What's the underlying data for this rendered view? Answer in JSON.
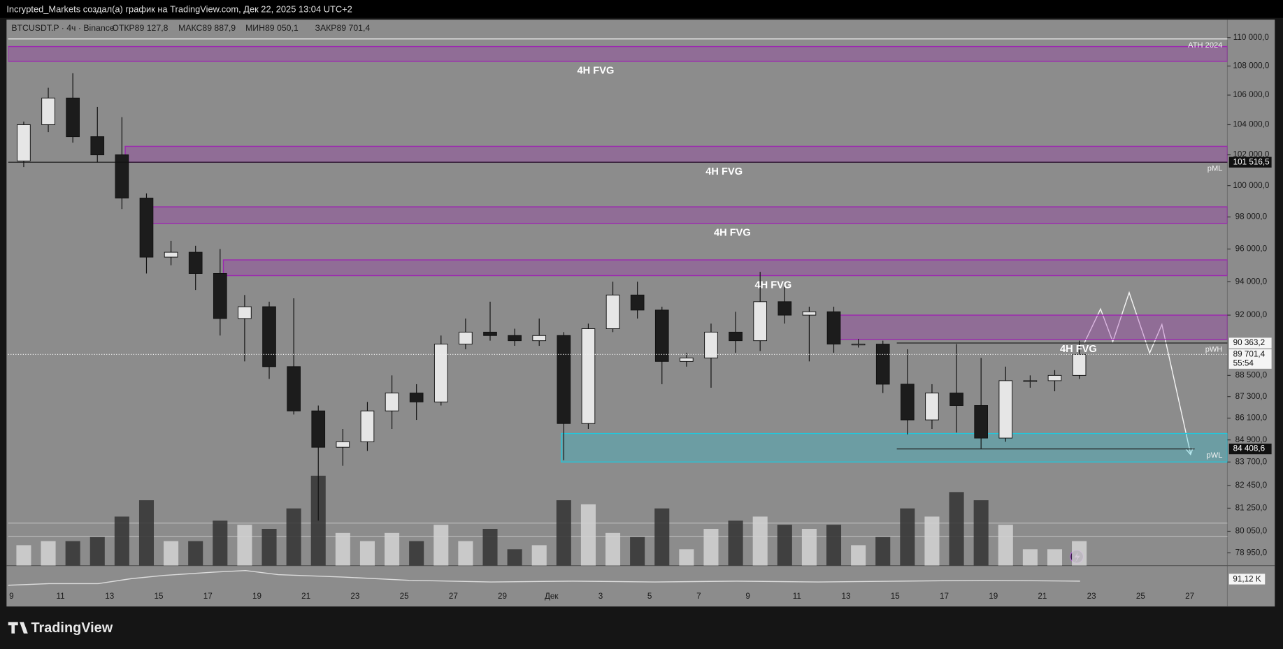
{
  "header": {
    "title": "Incrypted_Markets создал(а) график на TradingView.com, Дек 22, 2025 13:04 UTC+2",
    "symbol": "BTCUSDT.P · 4ч · Binance",
    "ohlc": [
      "ОТКР89 127,8",
      "МАКС89 887,9",
      "МИН89 050,1",
      "ЗАКР89 701,4"
    ]
  },
  "footer": {
    "brand": "TradingView"
  },
  "chart_data": {
    "type": "candlestick",
    "log_scale": true,
    "categories": [
      "9",
      null,
      "11",
      null,
      "13",
      null,
      "15",
      null,
      "17",
      null,
      "19",
      null,
      "21",
      null,
      "23",
      null,
      "25",
      null,
      "27",
      null,
      "29",
      null,
      "Дек",
      null,
      "3",
      null,
      "5",
      null,
      "7",
      null,
      "9",
      null,
      "11",
      null,
      "13",
      null,
      "15",
      null,
      "17",
      null,
      "19",
      null,
      "21",
      null,
      "23",
      null,
      "25",
      null,
      "27"
    ],
    "open": [
      101600,
      104000,
      105800,
      103200,
      102000,
      99200,
      95500,
      95800,
      94500,
      91800,
      92500,
      89000,
      86500,
      84500,
      84800,
      86500,
      87500,
      87000,
      90300,
      91000,
      90800,
      90500,
      90800,
      85800,
      91200,
      93200,
      92300,
      89300,
      89500,
      91000,
      90500,
      92800,
      92000,
      92200,
      90300,
      90300,
      88000,
      86000,
      87500,
      86800,
      85000,
      88200,
      88200,
      88500,
      null,
      null,
      null,
      null,
      null
    ],
    "high": [
      104200,
      106500,
      107500,
      105200,
      104500,
      99500,
      96500,
      96200,
      96000,
      93200,
      92800,
      93000,
      86800,
      85500,
      87000,
      88500,
      88000,
      90800,
      91800,
      92800,
      91200,
      91800,
      91000,
      91500,
      94000,
      94000,
      92500,
      89800,
      91500,
      92200,
      94600,
      93800,
      92500,
      92500,
      90600,
      90500,
      90000,
      88000,
      90300,
      89500,
      89000,
      88500,
      88800,
      90500,
      null,
      null,
      null,
      null,
      null
    ],
    "low": [
      101200,
      103500,
      102800,
      101500,
      98500,
      94500,
      95000,
      93500,
      90800,
      89300,
      88300,
      86300,
      80600,
      83500,
      84300,
      85500,
      86000,
      86800,
      90000,
      90500,
      90200,
      90200,
      83800,
      85500,
      91000,
      91800,
      88000,
      89000,
      87800,
      89800,
      89900,
      91500,
      89300,
      89800,
      90100,
      87500,
      85200,
      85500,
      85300,
      84400,
      84800,
      87800,
      87600,
      88300,
      null,
      null,
      null,
      null,
      null
    ],
    "close": [
      104000,
      105800,
      103200,
      102000,
      99200,
      95500,
      95800,
      94500,
      91800,
      92500,
      89000,
      86500,
      84500,
      84800,
      86500,
      87500,
      87000,
      90300,
      91000,
      90800,
      90500,
      90800,
      85800,
      91200,
      93200,
      92300,
      89300,
      89500,
      91000,
      90500,
      92800,
      92000,
      92200,
      90300,
      90300,
      88000,
      86000,
      87500,
      86800,
      85000,
      88200,
      88200,
      88500,
      89701.4,
      null,
      null,
      null,
      null,
      null
    ],
    "volume": [
      25,
      30,
      30,
      35,
      60,
      80,
      30,
      30,
      55,
      50,
      45,
      70,
      110,
      40,
      30,
      40,
      30,
      50,
      30,
      45,
      20,
      25,
      80,
      75,
      40,
      35,
      70,
      20,
      45,
      55,
      60,
      50,
      45,
      50,
      25,
      35,
      70,
      60,
      90,
      80,
      50,
      20,
      20,
      30,
      null,
      null,
      null,
      null,
      null
    ],
    "vlim": [
      0,
      120
    ],
    "up_color": "#e6e6e6",
    "down_color": "#1c1c1c",
    "ylim": [
      78300,
      111100
    ],
    "yticks": [
      {
        "value": 110000,
        "label": "110 000,0"
      },
      {
        "value": 108000,
        "label": "108 000,0"
      },
      {
        "value": 106000,
        "label": "106 000,0"
      },
      {
        "value": 104000,
        "label": "104 000,0"
      },
      {
        "value": 102000,
        "label": "102 000,0"
      },
      {
        "value": 100000,
        "label": "100 000,0"
      },
      {
        "value": 98000,
        "label": "98 000,0"
      },
      {
        "value": 96000,
        "label": "96 000,0"
      },
      {
        "value": 94000,
        "label": "94 000,0"
      },
      {
        "value": 92000,
        "label": "92 000,0"
      },
      {
        "value": 88500,
        "label": "88 500,0"
      },
      {
        "value": 87300,
        "label": "87 300,0"
      },
      {
        "value": 86100,
        "label": "86 100,0"
      },
      {
        "value": 84900,
        "label": "84 900,0"
      },
      {
        "value": 83700,
        "label": "83 700,0"
      },
      {
        "value": 82450,
        "label": "82 450,0"
      },
      {
        "value": 81250,
        "label": "81 250,0"
      },
      {
        "value": 80050,
        "label": "80 050,0"
      },
      {
        "value": 78950,
        "label": "78 950,0"
      }
    ],
    "zones": [
      {
        "label": "4H FVG",
        "top": 109365,
        "bottom": 108333,
        "color": "#9c27b0"
      },
      {
        "label": "4H FVG",
        "top": 102560,
        "bottom": 101516.5,
        "color": "#9c27b0"
      },
      {
        "label": "4H FVG",
        "top": 98640,
        "bottom": 97600,
        "color": "#9c27b0"
      },
      {
        "label": "4H FVG",
        "top": 95330,
        "bottom": 94370,
        "color": "#9c27b0"
      },
      {
        "label": "4H FVG",
        "top": 92000,
        "bottom": 90570,
        "color": "#9c27b0"
      },
      {
        "top": 85250,
        "bottom": 83700,
        "color": "#26c6da"
      }
    ],
    "levels": [
      {
        "name": "ATH 2024",
        "value": 109900
      },
      {
        "name": "pML",
        "value": {
          "value": 101516.5,
          "label": "101 516,5"
        }
      },
      {
        "name": "pWH",
        "value": {
          "value": 90363.2,
          "label": "90 363,2"
        }
      },
      {
        "name": "pWL",
        "value": {
          "value": 84408.6,
          "label": "84 408,6"
        }
      }
    ],
    "last_price": {
      "value": 89701.4,
      "label": "89 701,4"
    },
    "countdown": "55:54",
    "indicator_label": "91,12 K"
  }
}
